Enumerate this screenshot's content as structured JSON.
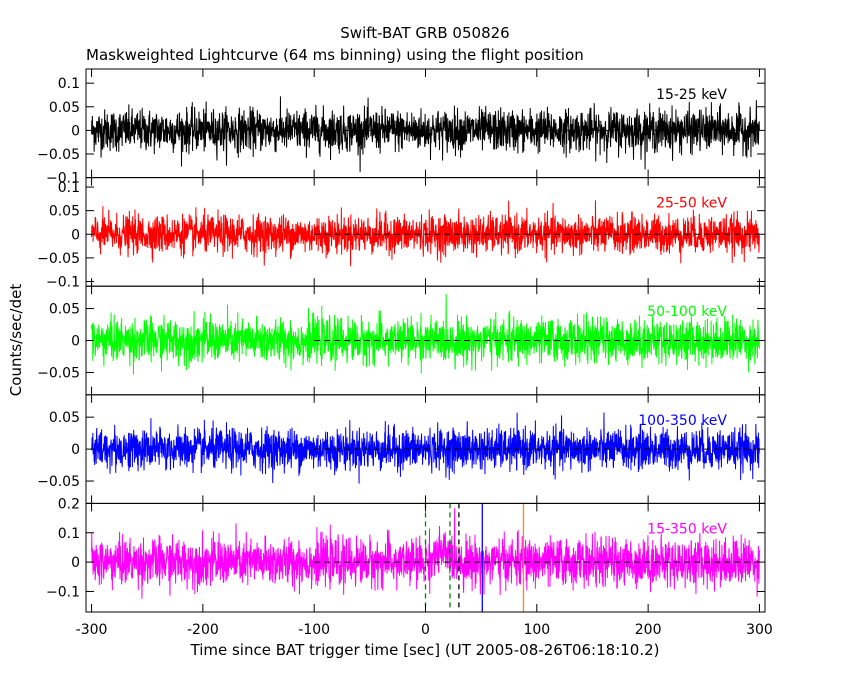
{
  "chart_data": {
    "type": "line",
    "title": "Swift-BAT GRB 050826",
    "subtitle": "Maskweighted Lightcurve (64 ms binning) using the flight position",
    "xlabel": "Time since BAT trigger time [sec] (UT 2005-08-26T06:18:10.2)",
    "ylabel": "Counts/sec/det",
    "xlim": [
      -305,
      305
    ],
    "x_ticks": [
      "-300",
      "-200",
      "-100",
      "0",
      "100",
      "200",
      "300"
    ],
    "x_tick_values": [
      -300,
      -200,
      -100,
      0,
      100,
      200,
      300
    ],
    "series_start": -300,
    "series_end": 300,
    "dashed_zero_start": -100,
    "vertical_markers": [
      {
        "x": 0,
        "color": "#008000",
        "style": "dashed"
      },
      {
        "x": 22,
        "color": "#008000",
        "style": "dashed"
      },
      {
        "x": 30,
        "color": "#000000",
        "style": "dashed"
      },
      {
        "x": 51,
        "color": "#0000ff",
        "style": "solid"
      },
      {
        "x": 88,
        "color": "#ff8c00",
        "style": "solid"
      }
    ],
    "panels": [
      {
        "name": "15-25 keV",
        "color": "#000000",
        "ylim": [
          -0.1,
          0.13
        ],
        "ticks": [
          0.1,
          0.05,
          0,
          -0.05,
          -0.1
        ],
        "tick_labels": [
          "0.1",
          "0.05",
          "0",
          "−0.05",
          "−0.1"
        ],
        "noise": 0.022,
        "burst": 0.0
      },
      {
        "name": "25-50 keV",
        "color": "#ff0000",
        "ylim": [
          -0.11,
          0.12
        ],
        "ticks": [
          0.1,
          0.05,
          0,
          -0.05,
          -0.1
        ],
        "tick_labels": [
          "0.1",
          "0.05",
          "0",
          "−0.05",
          "−0.1"
        ],
        "noise": 0.02,
        "burst": 0.0
      },
      {
        "name": "50-100 keV",
        "color": "#00ff00",
        "ylim": [
          -0.085,
          0.085
        ],
        "ticks": [
          0.05,
          0,
          -0.05
        ],
        "tick_labels": [
          "0.05",
          "0",
          "−0.05"
        ],
        "noise": 0.017,
        "burst": 0.0
      },
      {
        "name": "100-350 keV",
        "color": "#0000ff",
        "ylim": [
          -0.085,
          0.085
        ],
        "ticks": [
          0.05,
          0,
          -0.05
        ],
        "tick_labels": [
          "0.05",
          "0",
          "−0.05"
        ],
        "noise": 0.016,
        "burst": 0.0
      },
      {
        "name": "15-350 keV",
        "color": "#ff00ff",
        "ylim": [
          -0.17,
          0.2
        ],
        "ticks": [
          0.2,
          0.1,
          0,
          -0.1
        ],
        "tick_labels": [
          "0.2",
          "0.1",
          "0",
          "−0.1"
        ],
        "noise": 0.04,
        "burst": 0.03
      }
    ]
  }
}
